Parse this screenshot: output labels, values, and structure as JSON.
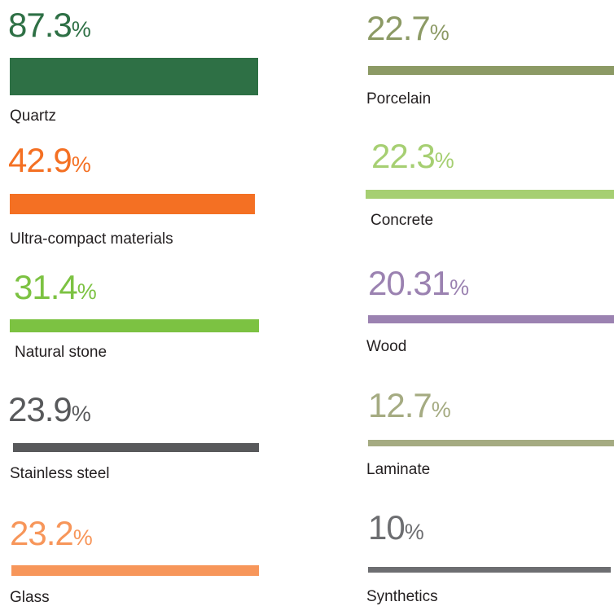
{
  "unit": "%",
  "items": [
    {
      "value": "87.3",
      "label": "Quartz",
      "color": "#2e7045"
    },
    {
      "value": "42.9",
      "label": "Ultra-compact materials",
      "color": "#f47023"
    },
    {
      "value": "31.4",
      "label": "Natural stone",
      "color": "#7cc242"
    },
    {
      "value": "23.9",
      "label": "Stainless steel",
      "color": "#58595b"
    },
    {
      "value": "23.2",
      "label": "Glass",
      "color": "#f7965a"
    },
    {
      "value": "22.7",
      "label": "Porcelain",
      "color": "#8c9a65"
    },
    {
      "value": "22.3",
      "label": "Concrete",
      "color": "#a6cf72"
    },
    {
      "value": "20.31",
      "label": "Wood",
      "color": "#9b82b1"
    },
    {
      "value": "12.7",
      "label": "Laminate",
      "color": "#a5ab82"
    },
    {
      "value": "10",
      "label": "Synthetics",
      "color": "#6d6e71"
    }
  ]
}
